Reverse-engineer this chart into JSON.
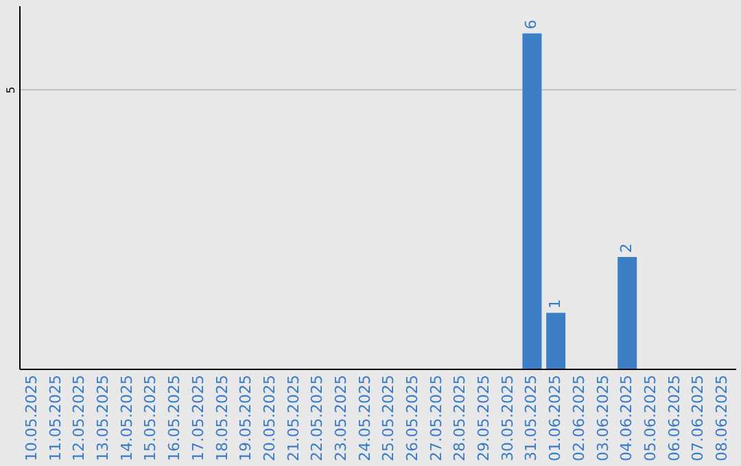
{
  "chart_data": {
    "type": "bar",
    "categories": [
      "10.05.2025",
      "11.05.2025",
      "12.05.2025",
      "13.05.2025",
      "14.05.2025",
      "15.05.2025",
      "16.05.2025",
      "17.05.2025",
      "18.05.2025",
      "19.05.2025",
      "20.05.2025",
      "21.05.2025",
      "22.05.2025",
      "23.05.2025",
      "24.05.2025",
      "25.05.2025",
      "26.05.2025",
      "27.05.2025",
      "28.05.2025",
      "29.05.2025",
      "30.05.2025",
      "31.05.2025",
      "01.06.2025",
      "02.06.2025",
      "03.06.2025",
      "04.06.2025",
      "05.06.2025",
      "06.06.2025",
      "07.06.2025",
      "08.06.2025"
    ],
    "values": [
      null,
      null,
      null,
      null,
      null,
      null,
      null,
      null,
      null,
      null,
      null,
      null,
      null,
      null,
      null,
      null,
      null,
      null,
      null,
      null,
      null,
      6,
      1,
      null,
      null,
      2,
      null,
      null,
      null,
      null
    ],
    "data_labels": true,
    "color": "#3d7fc6",
    "ylim": [
      0,
      6.5
    ],
    "yticks": [
      5
    ],
    "grid": "y"
  }
}
